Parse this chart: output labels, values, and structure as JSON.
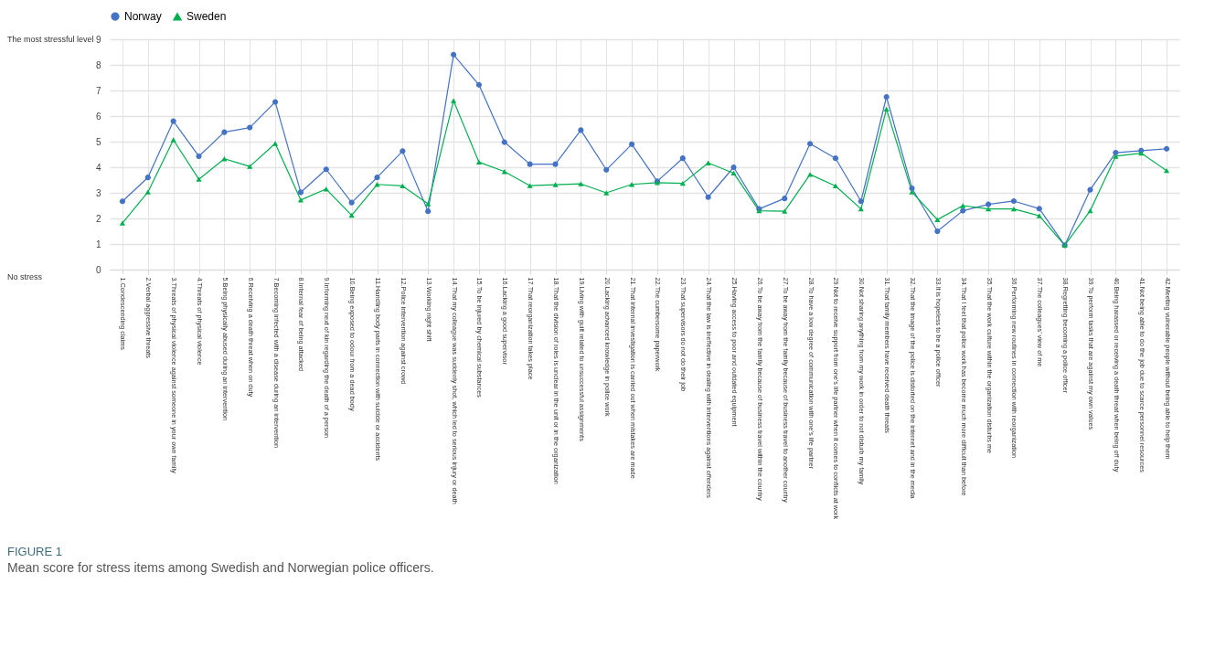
{
  "chart_data": {
    "type": "line",
    "title": "FIGURE 1",
    "subtitle": "Mean score for stress items among Swedish and Norwegian police officers.",
    "categories": [
      "1.Condescending claims",
      "2.Verbal aggressive threats",
      "3.Threats of physical violence against someone in your own family",
      "4.Threats of physical violence",
      "5.Being physically abused during an intervention",
      "6.Receiving a death threat when on duty",
      "7.Becoming infected with a disease during an intervention",
      "8.Internal fear of being attacked",
      "9.Informing next of kin regarding the death of a person",
      "10.Being exposed to odour from a dead body",
      "11.Handling body parts in connection with suicide or accidents",
      "12.Police intervention against crowd",
      "13.Working night shift",
      "14.That my colleague was suddenly shot, which led to serious injury or death",
      "15.To be injured by chemical substances",
      "16.Lacking a good supervisor",
      "17.That reorganization takes place",
      "18.That the division of roles is unclear in the unit or in the organization",
      "19.Living with guilt related to unsuccessful assignments",
      "20.Lacking advanced knowledge in police work",
      "21.That internal investigation is carried out when mistakes are made",
      "22.The cumbersome paperwork",
      "23.That supervisors do not do their job",
      "24.That the law is ineffective in dealing with interventions against offenders",
      "25.Having access to poor and outdated equipment",
      "26.To be away from the family because of business travel within the country",
      "27.To be away from the family because of business travel to another country",
      "28.To have a low degree of communication with one’s life partner",
      "29.Not to receive support from one’s life partner when it comes to conflicts at work",
      "30.Not sharing anything from my work in order to not disturb my family",
      "31.That family members have received death threats",
      "32.That the image of the police is distorted on the internet and in the media",
      "33.It is hopeless to be a police officer",
      "34.That I feel that police work has become much more difficult than before",
      "35.That the work culture within the organization disturbs me",
      "36.Performing new routines in connection with reorganization",
      "37.The colleagues’ view of me",
      "38.Regretting becoming a police officer",
      "39.To perform tasks that are against my own values",
      "40.Being harassed or receiving a death threat when being off duty",
      "41.Not being able to do the job due to scarce personnel resources",
      "42.Meeting vulnerable people without being able to help them"
    ],
    "series": [
      {
        "name": "Norway",
        "color": "#4472c4",
        "marker": "circle",
        "values": [
          2.67,
          3.6,
          5.8,
          4.43,
          5.37,
          5.55,
          6.55,
          3.02,
          3.92,
          2.62,
          3.6,
          4.63,
          2.28,
          8.4,
          7.22,
          4.98,
          4.12,
          4.12,
          5.45,
          3.9,
          4.9,
          3.45,
          4.35,
          2.83,
          4.0,
          2.37,
          2.78,
          4.92,
          4.35,
          2.67,
          6.75,
          3.18,
          1.5,
          2.3,
          2.55,
          2.68,
          2.38,
          0.95,
          3.12,
          4.57,
          4.65,
          4.72
        ]
      },
      {
        "name": "Sweden",
        "color": "#00b050",
        "marker": "triangle",
        "values": [
          1.82,
          3.03,
          5.07,
          3.53,
          4.33,
          4.03,
          4.93,
          2.72,
          3.15,
          2.12,
          3.33,
          3.27,
          2.57,
          6.6,
          4.2,
          3.83,
          3.28,
          3.32,
          3.35,
          3.0,
          3.33,
          3.4,
          3.37,
          4.17,
          3.77,
          2.3,
          2.28,
          3.72,
          3.27,
          2.37,
          6.27,
          3.03,
          1.95,
          2.5,
          2.37,
          2.37,
          2.1,
          0.95,
          2.3,
          4.43,
          4.55,
          3.87
        ]
      }
    ],
    "ylim": [
      0,
      9
    ],
    "yticks": [
      0,
      1,
      2,
      3,
      4,
      5,
      6,
      7,
      8,
      9
    ],
    "annotations": [
      "The most stressful level",
      "No stress"
    ],
    "grid": true,
    "legend": "top",
    "line_style": "solid"
  }
}
